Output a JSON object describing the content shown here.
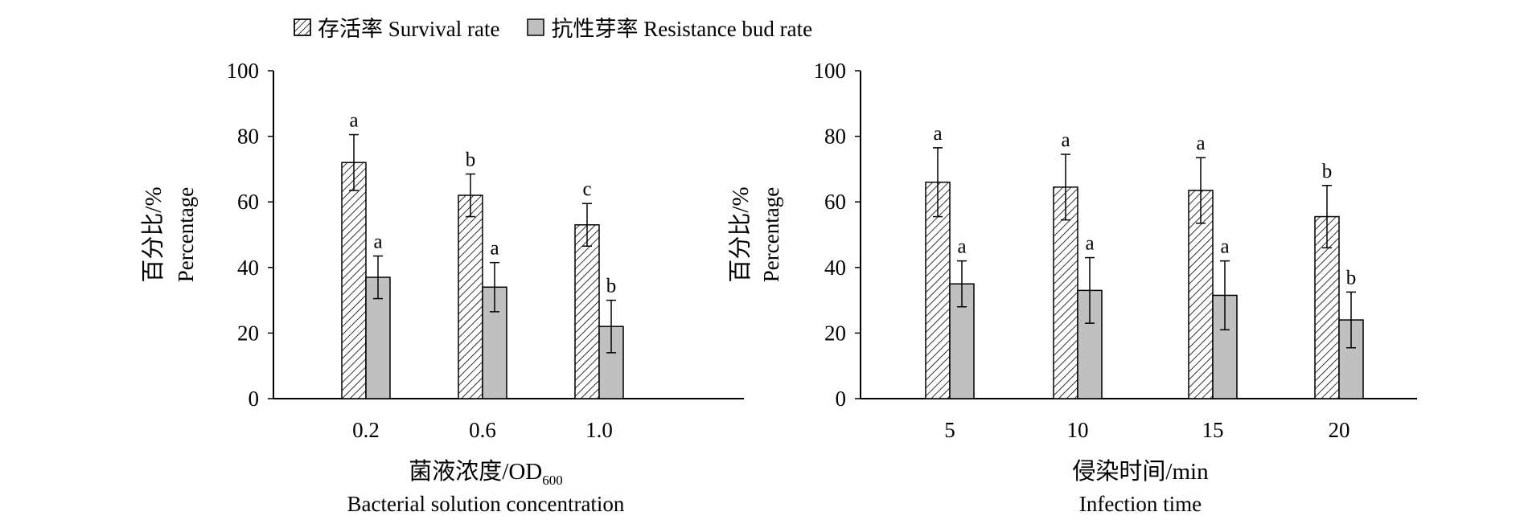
{
  "legend": {
    "survival": "存活率 Survival rate",
    "resistance": "抗性芽率 Resistance bud rate"
  },
  "colors": {
    "bar_gray": "#c0c0c0",
    "stroke": "#000000",
    "hatch": "#000000"
  },
  "chart_data": [
    {
      "type": "bar",
      "title": "",
      "xlabel_cn": "菌液浓度/OD",
      "xlabel_sub": "600",
      "xlabel_en": "Bacterial solution concentration",
      "ylabel_cn": "百分比/%",
      "ylabel_en": "Percentage",
      "ylim": [
        0,
        100
      ],
      "yticks": [
        "0",
        "20",
        "40",
        "60",
        "80",
        "100"
      ],
      "categories": [
        "0.2",
        "0.6",
        "1.0"
      ],
      "series": [
        {
          "name": "存活率 Survival rate",
          "values": [
            72,
            62,
            53
          ],
          "errors": [
            8.5,
            6.5,
            6.5
          ],
          "letters": [
            "a",
            "b",
            "c"
          ]
        },
        {
          "name": "抗性芽率 Resistance bud rate",
          "values": [
            37,
            34,
            22
          ],
          "errors": [
            6.5,
            7.5,
            8
          ],
          "letters": [
            "a",
            "a",
            "b"
          ]
        }
      ]
    },
    {
      "type": "bar",
      "title": "",
      "xlabel_cn": "侵染时间/min",
      "xlabel_sub": "",
      "xlabel_en": "Infection time",
      "ylabel_cn": "百分比/%",
      "ylabel_en": "Percentage",
      "ylim": [
        0,
        100
      ],
      "yticks": [
        "0",
        "20",
        "40",
        "60",
        "80",
        "100"
      ],
      "categories": [
        "5",
        "10",
        "15",
        "20"
      ],
      "series": [
        {
          "name": "存活率 Survival rate",
          "values": [
            66,
            64.5,
            63.5,
            55.5
          ],
          "errors": [
            10.5,
            10,
            10,
            9.5
          ],
          "letters": [
            "a",
            "a",
            "a",
            "b"
          ]
        },
        {
          "name": "抗性芽率 Resistance bud rate",
          "values": [
            35,
            33,
            31.5,
            24
          ],
          "errors": [
            7,
            10,
            10.5,
            8.5
          ],
          "letters": [
            "a",
            "a",
            "a",
            "b"
          ]
        }
      ]
    }
  ]
}
